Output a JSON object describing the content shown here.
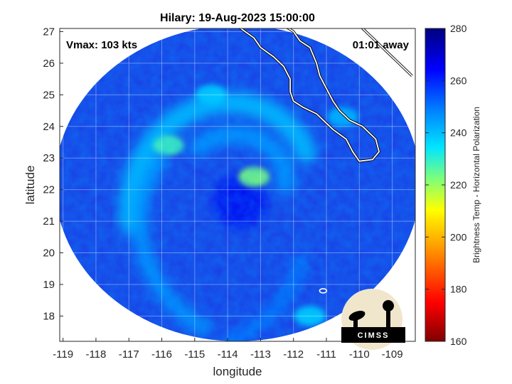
{
  "chart_data": {
    "type": "heatmap",
    "title": "Hilary: 19-Aug-2023 15:00:00",
    "xlabel": "longitude",
    "ylabel": "latitude",
    "xlim": [
      -119.1,
      -108.3
    ],
    "ylim": [
      17.2,
      27.1
    ],
    "xticks": [
      -119,
      -118,
      -117,
      -116,
      -115,
      -114,
      -113,
      -112,
      -111,
      -110,
      -109
    ],
    "yticks": [
      18,
      19,
      20,
      21,
      22,
      23,
      24,
      25,
      26,
      27
    ],
    "grid": true,
    "annotations": {
      "vmax": "Vmax: 103 kts",
      "time_offset": "01:01 away"
    },
    "colorbar": {
      "label": "Brightness Temp - Horizontal Polarization",
      "range": [
        160,
        280
      ],
      "ticks": [
        160,
        180,
        200,
        220,
        240,
        260,
        280
      ],
      "colors": [
        "#7f0000",
        "#ff0000",
        "#ff9a00",
        "#ffff00",
        "#7dff7a",
        "#00e5ff",
        "#0080ff",
        "#0000ff",
        "#00007f"
      ]
    },
    "storm_center": {
      "lon": -113.4,
      "lat": 21.9
    },
    "swath": {
      "center_lon": -113.7,
      "center_lat": 22.2,
      "radius_lon": 5.55,
      "radius_lat": 5.0
    },
    "features": [
      {
        "name": "eyewall",
        "lon": -113.2,
        "lat": 22.4,
        "tb": 222
      },
      {
        "name": "west-band",
        "lon": -115.8,
        "lat": 23.4,
        "tb": 228
      },
      {
        "name": "north-band",
        "lon": -114.5,
        "lat": 25.0,
        "tb": 238
      },
      {
        "name": "east-band",
        "lon": -110.5,
        "lat": 24.3,
        "tb": 242
      },
      {
        "name": "south-band",
        "lon": -111.5,
        "lat": 18.0,
        "tb": 238
      }
    ]
  },
  "logo": {
    "text": "CIMSS"
  }
}
